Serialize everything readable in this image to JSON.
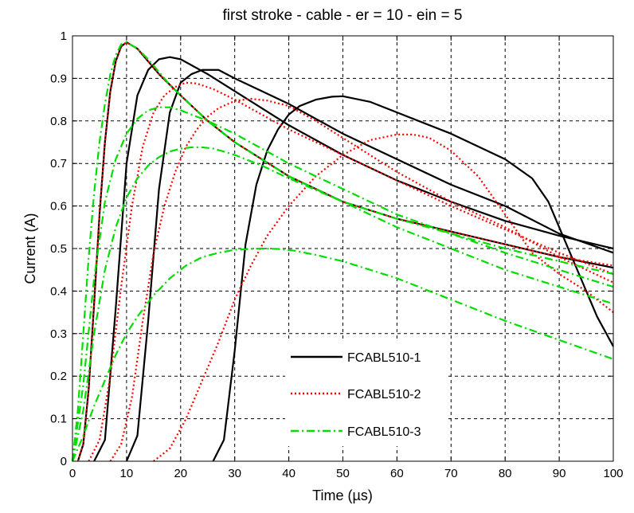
{
  "chart_data": {
    "type": "line",
    "title": "first stroke - cable - er = 10 - ein = 5",
    "xlabel": "Time (µs)",
    "ylabel": "Current (A)",
    "xlim": [
      0,
      100
    ],
    "ylim": [
      0,
      1
    ],
    "xticks": [
      "0",
      "10",
      "20",
      "30",
      "40",
      "50",
      "60",
      "70",
      "80",
      "90",
      "100"
    ],
    "yticks": [
      "0",
      "0.1",
      "0.2",
      "0.3",
      "0.4",
      "0.5",
      "0.6",
      "0.7",
      "0.8",
      "0.9",
      "1"
    ],
    "grid": true,
    "legend_position": "bottom-center",
    "legend": [
      {
        "label": "FCABL510-1",
        "color": "#000000",
        "style": "solid"
      },
      {
        "label": "FCABL510-2",
        "color": "#ff0000",
        "style": "dotted"
      },
      {
        "label": "FCABL510-3",
        "color": "#00dd00",
        "style": "dashdot"
      }
    ],
    "series": [
      {
        "group": 0,
        "color": "#000000",
        "style": "solid",
        "x": [
          1,
          2,
          3,
          4,
          5,
          6,
          7,
          8,
          9,
          10,
          12,
          14,
          16,
          18,
          20,
          25,
          30,
          40,
          50,
          60,
          70,
          80,
          90,
          100
        ],
        "y": [
          0,
          0.04,
          0.17,
          0.37,
          0.58,
          0.75,
          0.87,
          0.94,
          0.975,
          0.985,
          0.97,
          0.94,
          0.91,
          0.885,
          0.86,
          0.8,
          0.75,
          0.67,
          0.61,
          0.57,
          0.54,
          0.51,
          0.48,
          0.455
        ]
      },
      {
        "group": 0,
        "color": "#000000",
        "style": "solid",
        "x": [
          4,
          6,
          8,
          10,
          12,
          14,
          16,
          18,
          20,
          25,
          30,
          40,
          50,
          60,
          70,
          80,
          90,
          100
        ],
        "y": [
          0,
          0.05,
          0.36,
          0.7,
          0.86,
          0.92,
          0.945,
          0.95,
          0.945,
          0.91,
          0.87,
          0.79,
          0.72,
          0.66,
          0.61,
          0.565,
          0.53,
          0.5
        ]
      },
      {
        "group": 0,
        "color": "#000000",
        "style": "solid",
        "x": [
          10,
          12,
          14,
          16,
          18,
          20,
          22,
          24,
          27,
          30,
          35,
          40,
          50,
          60,
          70,
          80,
          90,
          100
        ],
        "y": [
          0,
          0.06,
          0.33,
          0.64,
          0.82,
          0.89,
          0.91,
          0.92,
          0.92,
          0.9,
          0.87,
          0.84,
          0.77,
          0.71,
          0.65,
          0.6,
          0.535,
          0.49
        ]
      },
      {
        "group": 0,
        "color": "#000000",
        "style": "solid",
        "x": [
          26,
          28,
          30,
          32,
          34,
          36,
          38,
          40,
          42,
          45,
          48,
          50,
          55,
          60,
          70,
          80,
          85,
          88,
          91,
          94,
          97,
          100
        ],
        "y": [
          0,
          0.05,
          0.26,
          0.51,
          0.65,
          0.73,
          0.78,
          0.815,
          0.835,
          0.85,
          0.857,
          0.858,
          0.845,
          0.82,
          0.77,
          0.71,
          0.665,
          0.61,
          0.52,
          0.43,
          0.34,
          0.27
        ]
      },
      {
        "group": 1,
        "color": "#ff0000",
        "style": "dotted",
        "x": [
          1,
          2,
          3,
          4,
          5,
          6,
          7,
          8,
          9,
          10,
          12,
          14,
          16,
          18,
          20,
          25,
          30,
          40,
          50,
          60,
          70,
          80,
          90,
          100
        ],
        "y": [
          0,
          0.04,
          0.17,
          0.37,
          0.58,
          0.75,
          0.87,
          0.94,
          0.975,
          0.985,
          0.97,
          0.94,
          0.91,
          0.885,
          0.86,
          0.8,
          0.75,
          0.67,
          0.61,
          0.57,
          0.54,
          0.51,
          0.48,
          0.46
        ]
      },
      {
        "group": 1,
        "color": "#ff0000",
        "style": "dotted",
        "x": [
          3,
          5,
          7,
          9,
          11,
          13,
          15,
          17,
          19,
          21,
          23,
          26,
          30,
          35,
          40,
          50,
          60,
          70,
          80,
          90,
          100
        ],
        "y": [
          0,
          0.05,
          0.2,
          0.41,
          0.6,
          0.74,
          0.82,
          0.86,
          0.88,
          0.89,
          0.888,
          0.875,
          0.85,
          0.815,
          0.78,
          0.72,
          0.66,
          0.6,
          0.545,
          0.49,
          0.44
        ]
      },
      {
        "group": 1,
        "color": "#ff0000",
        "style": "dotted",
        "x": [
          7,
          9,
          11,
          13,
          15,
          17,
          19,
          21,
          23,
          25,
          27,
          30,
          33,
          36,
          40,
          45,
          50,
          60,
          70,
          80,
          90,
          100
        ],
        "y": [
          0,
          0.04,
          0.15,
          0.33,
          0.49,
          0.6,
          0.68,
          0.74,
          0.78,
          0.81,
          0.83,
          0.847,
          0.852,
          0.848,
          0.835,
          0.8,
          0.76,
          0.68,
          0.61,
          0.55,
          0.48,
          0.42
        ]
      },
      {
        "group": 1,
        "color": "#ff0000",
        "style": "dotted",
        "x": [
          15,
          18,
          21,
          24,
          27,
          30,
          33,
          36,
          40,
          45,
          50,
          55,
          60,
          63,
          66,
          70,
          75,
          80,
          85,
          90,
          95,
          100
        ],
        "y": [
          0,
          0.03,
          0.1,
          0.19,
          0.28,
          0.38,
          0.46,
          0.53,
          0.6,
          0.67,
          0.72,
          0.755,
          0.768,
          0.768,
          0.76,
          0.73,
          0.67,
          0.58,
          0.49,
          0.44,
          0.4,
          0.35
        ]
      },
      {
        "group": 2,
        "color": "#00dd00",
        "style": "dashdot",
        "x": [
          0,
          1,
          2,
          3,
          4,
          5,
          6,
          7,
          8,
          9,
          10,
          12,
          14,
          16,
          18,
          20,
          25,
          30,
          40,
          50,
          60,
          70,
          80,
          90,
          100
        ],
        "y": [
          0,
          0.12,
          0.3,
          0.48,
          0.63,
          0.75,
          0.84,
          0.91,
          0.955,
          0.98,
          0.985,
          0.97,
          0.945,
          0.915,
          0.885,
          0.86,
          0.8,
          0.75,
          0.67,
          0.61,
          0.57,
          0.535,
          0.5,
          0.47,
          0.44
        ]
      },
      {
        "group": 2,
        "color": "#00dd00",
        "style": "dashdot",
        "x": [
          0,
          2,
          4,
          6,
          8,
          10,
          12,
          14,
          16,
          18,
          20,
          25,
          30,
          40,
          50,
          60,
          70,
          80,
          90,
          100
        ],
        "y": [
          0,
          0.18,
          0.43,
          0.61,
          0.71,
          0.77,
          0.805,
          0.825,
          0.832,
          0.832,
          0.825,
          0.8,
          0.77,
          0.7,
          0.64,
          0.58,
          0.535,
          0.49,
          0.45,
          0.41
        ]
      },
      {
        "group": 2,
        "color": "#00dd00",
        "style": "dashdot",
        "x": [
          0,
          2,
          4,
          6,
          8,
          10,
          12,
          14,
          16,
          18,
          20,
          22,
          24,
          26,
          28,
          30,
          35,
          40,
          50,
          60,
          70,
          80,
          90,
          100
        ],
        "y": [
          0,
          0.12,
          0.3,
          0.45,
          0.55,
          0.62,
          0.665,
          0.695,
          0.715,
          0.728,
          0.735,
          0.738,
          0.738,
          0.735,
          0.728,
          0.72,
          0.695,
          0.665,
          0.61,
          0.55,
          0.5,
          0.45,
          0.41,
          0.37
        ]
      },
      {
        "group": 2,
        "color": "#00dd00",
        "style": "dashdot",
        "x": [
          0,
          2,
          4,
          6,
          8,
          10,
          12,
          15,
          18,
          21,
          24,
          27,
          30,
          33,
          35,
          38,
          41,
          45,
          50,
          60,
          70,
          80,
          90,
          100
        ],
        "y": [
          0,
          0.06,
          0.13,
          0.19,
          0.25,
          0.3,
          0.34,
          0.39,
          0.43,
          0.46,
          0.48,
          0.49,
          0.497,
          0.499,
          0.5,
          0.499,
          0.495,
          0.485,
          0.47,
          0.43,
          0.38,
          0.33,
          0.285,
          0.24
        ]
      }
    ]
  }
}
